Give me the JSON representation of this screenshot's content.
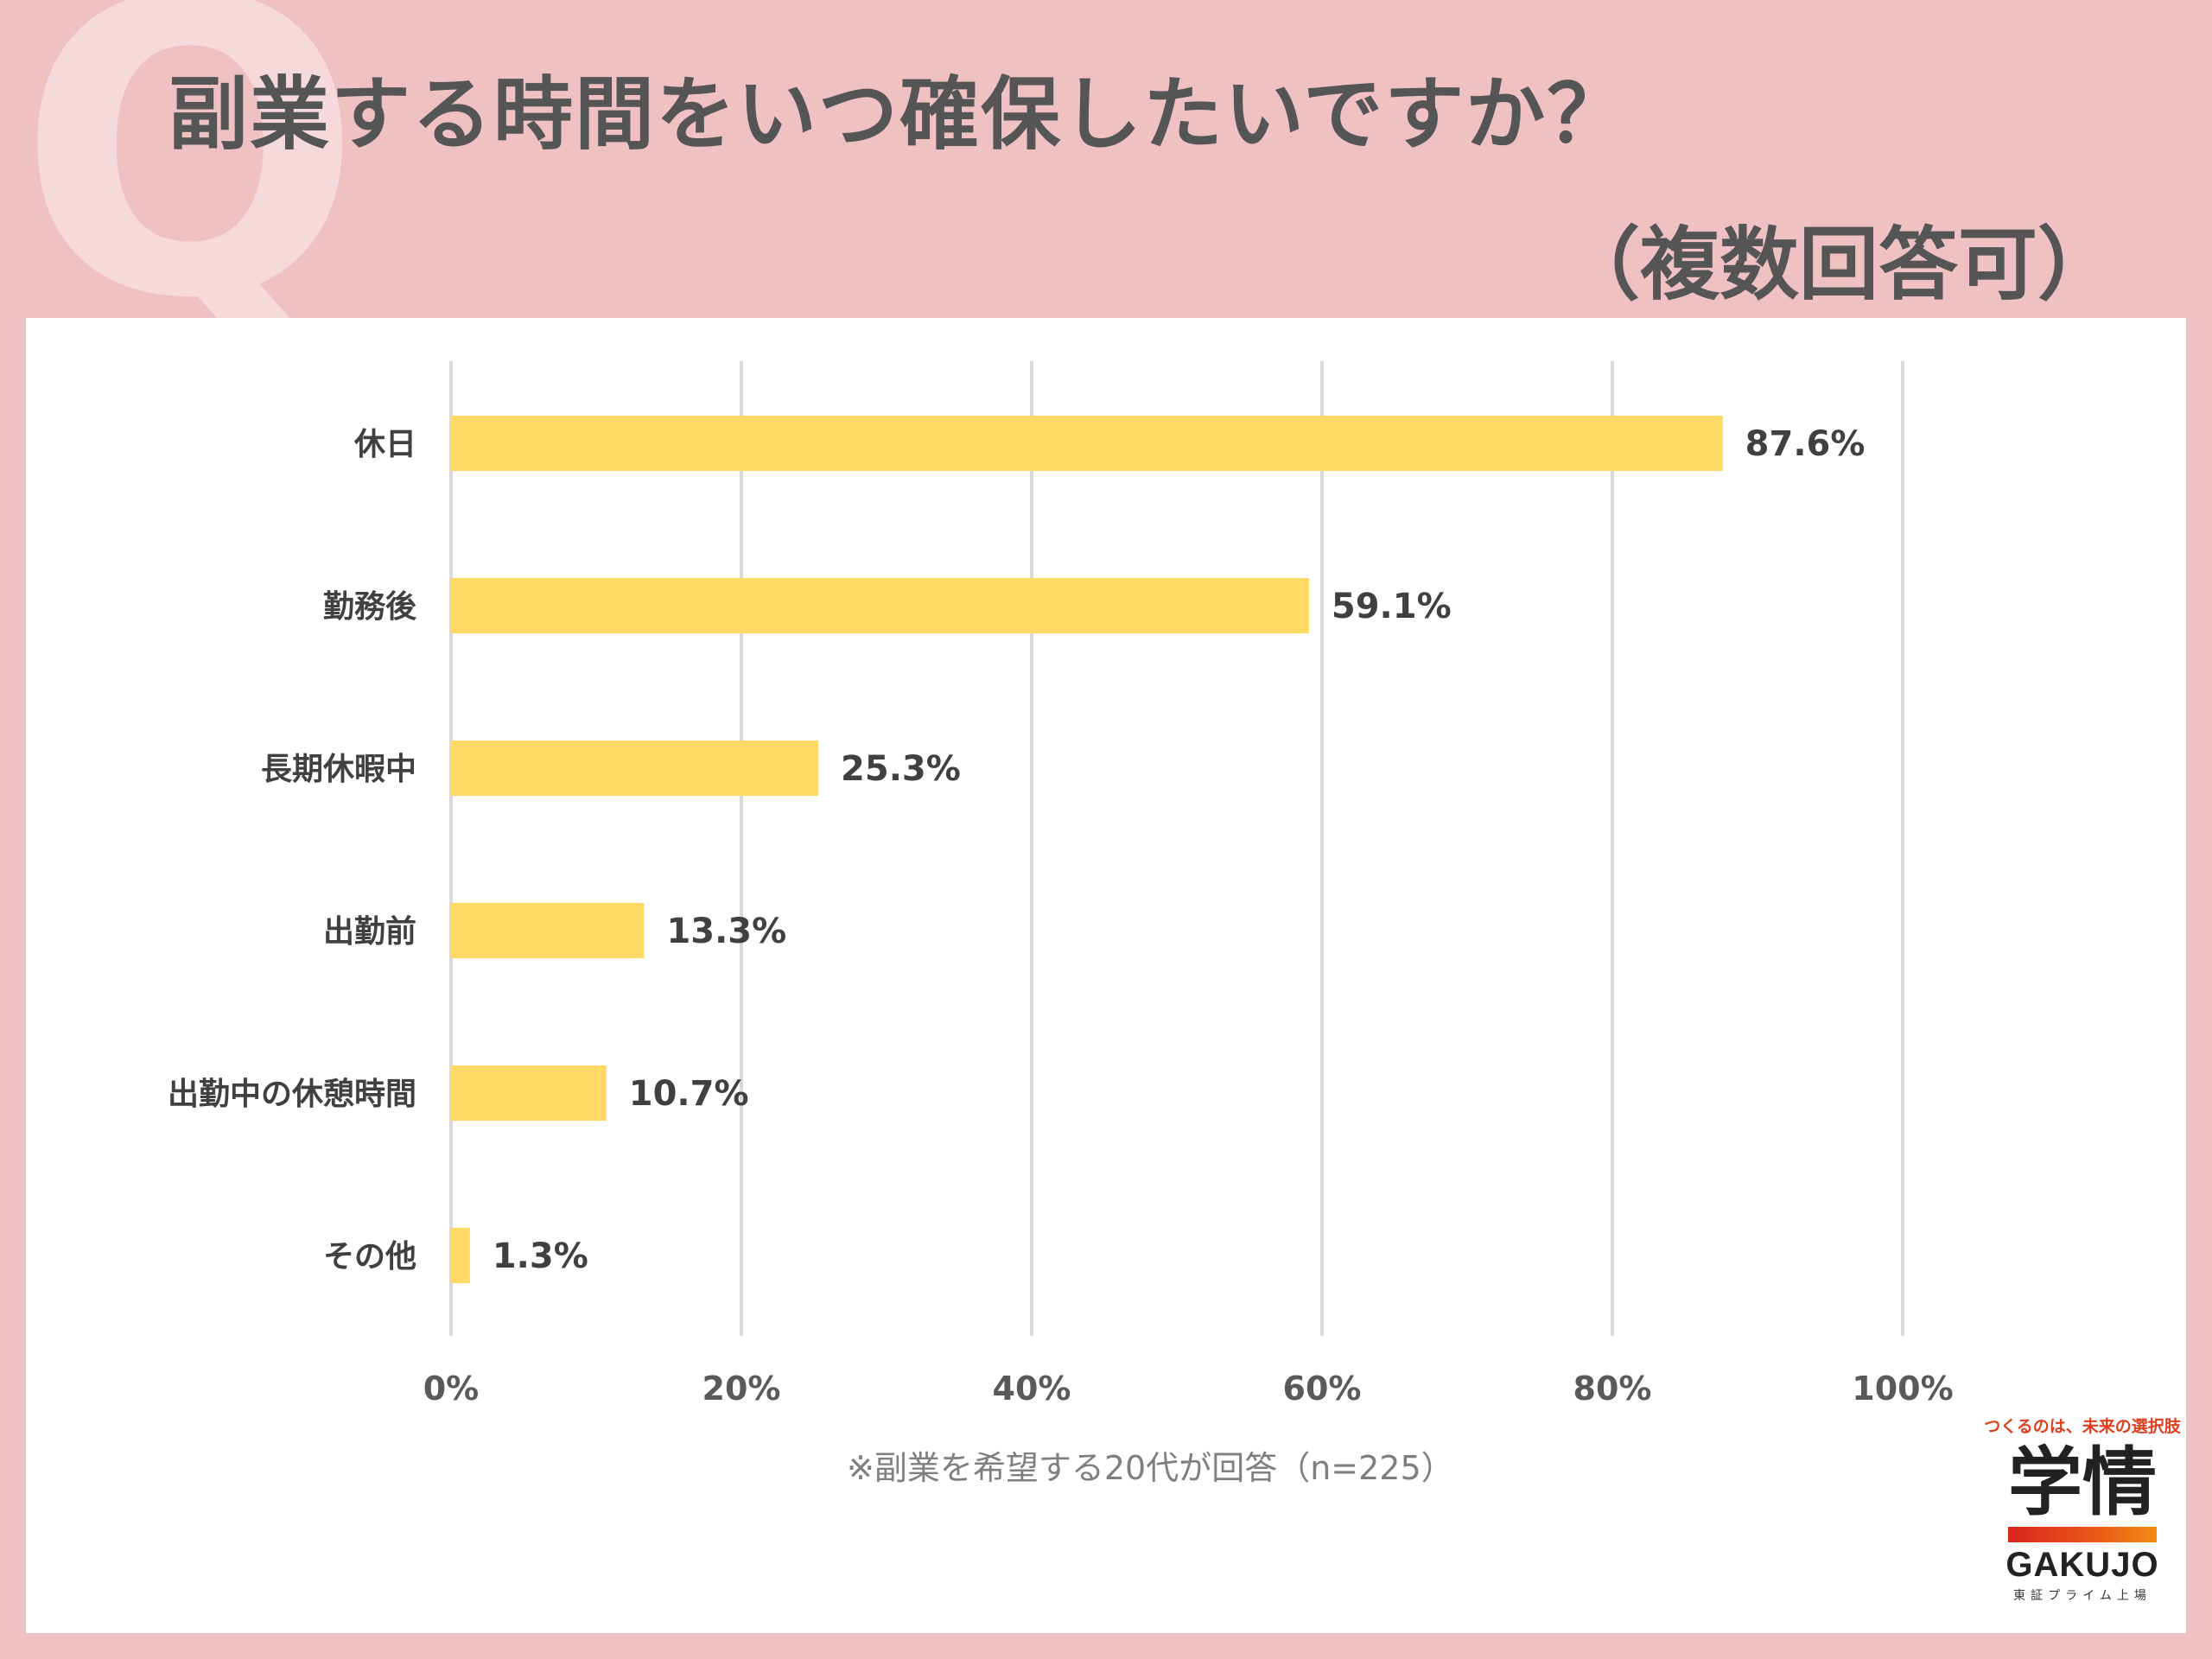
{
  "header": {
    "watermark": "Q",
    "title_line1": "副業する時間をいつ確保したいですか？",
    "title_line2": "（複数回答可）"
  },
  "chart_data": {
    "type": "bar",
    "orientation": "horizontal",
    "categories": [
      "休日",
      "勤務後",
      "長期休暇中",
      "出勤前",
      "出勤中の休憩時間",
      "その他"
    ],
    "values": [
      87.6,
      59.1,
      25.3,
      13.3,
      10.7,
      1.3
    ],
    "value_labels": [
      "87.6%",
      "59.1%",
      "25.3%",
      "13.3%",
      "10.7%",
      "1.3%"
    ],
    "xlim": [
      0,
      100
    ],
    "xticks": [
      0,
      20,
      40,
      60,
      80,
      100
    ],
    "xtick_labels": [
      "0%",
      "20%",
      "40%",
      "60%",
      "80%",
      "100%"
    ],
    "grid": "vertical",
    "bar_color": "#ffd966",
    "footnote": "※副業を希望する20代が回答（n=225）"
  },
  "logo": {
    "tagline": "つくるのは、未来の選択肢",
    "kanji": "学情",
    "latin": "GAKUJO",
    "sub": "東証プライム上場"
  },
  "colors": {
    "background": "#f0c1c2",
    "title": "#555555",
    "bar": "#ffd966"
  }
}
